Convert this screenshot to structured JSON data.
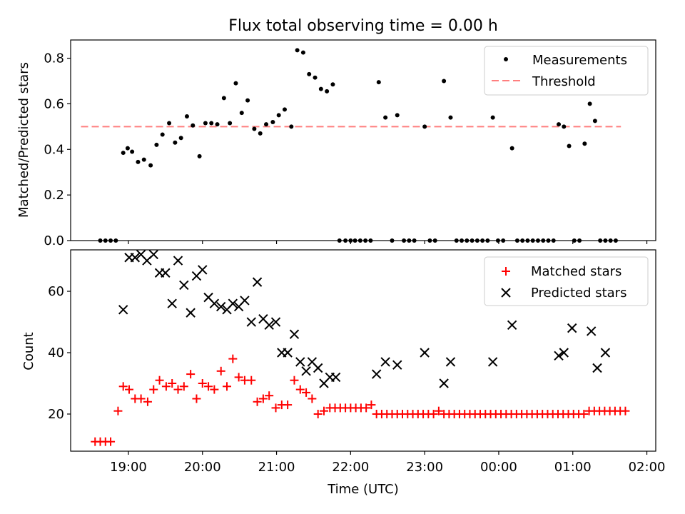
{
  "figure_title": "Flux total observing time = 0.00 h",
  "x_axis": {
    "label": "Time (UTC)",
    "ticks": [
      {
        "h": 19,
        "label": "19:00"
      },
      {
        "h": 20,
        "label": "20:00"
      },
      {
        "h": 21,
        "label": "21:00"
      },
      {
        "h": 22,
        "label": "22:00"
      },
      {
        "h": 23,
        "label": "23:00"
      },
      {
        "h": 24,
        "label": "00:00"
      },
      {
        "h": 25,
        "label": "01:00"
      },
      {
        "h": 26,
        "label": "02:00"
      }
    ],
    "range": [
      18.22,
      26.12
    ]
  },
  "chart_data": [
    {
      "type": "scatter",
      "ylabel": "Matched/Predicted stars",
      "ylim": [
        0,
        0.88
      ],
      "yticks": [
        {
          "v": 0.0,
          "label": "0.0"
        },
        {
          "v": 0.2,
          "label": "0.2"
        },
        {
          "v": 0.4,
          "label": "0.4"
        },
        {
          "v": 0.6,
          "label": "0.6"
        },
        {
          "v": 0.8,
          "label": "0.8"
        }
      ],
      "legend": {
        "position": "top-right",
        "entries": [
          "Measurements",
          "Threshold"
        ]
      },
      "series": [
        {
          "name": "Measurements",
          "color": "#000000",
          "marker": "dot",
          "points": [
            [
              18.62,
              0.0
            ],
            [
              18.69,
              0.0
            ],
            [
              18.76,
              0.0
            ],
            [
              18.83,
              0.0
            ],
            [
              18.93,
              0.385
            ],
            [
              18.99,
              0.405
            ],
            [
              19.05,
              0.39
            ],
            [
              19.13,
              0.345
            ],
            [
              19.21,
              0.355
            ],
            [
              19.3,
              0.33
            ],
            [
              19.38,
              0.42
            ],
            [
              19.46,
              0.465
            ],
            [
              19.55,
              0.515
            ],
            [
              19.63,
              0.43
            ],
            [
              19.71,
              0.45
            ],
            [
              19.79,
              0.545
            ],
            [
              19.87,
              0.505
            ],
            [
              19.96,
              0.37
            ],
            [
              20.04,
              0.515
            ],
            [
              20.12,
              0.515
            ],
            [
              20.2,
              0.51
            ],
            [
              20.29,
              0.625
            ],
            [
              20.37,
              0.515
            ],
            [
              20.45,
              0.69
            ],
            [
              20.53,
              0.56
            ],
            [
              20.61,
              0.615
            ],
            [
              20.7,
              0.49
            ],
            [
              20.78,
              0.47
            ],
            [
              20.86,
              0.51
            ],
            [
              20.95,
              0.52
            ],
            [
              21.03,
              0.55
            ],
            [
              21.11,
              0.575
            ],
            [
              21.2,
              0.5
            ],
            [
              21.28,
              0.835
            ],
            [
              21.36,
              0.825
            ],
            [
              21.44,
              0.73
            ],
            [
              21.52,
              0.715
            ],
            [
              21.6,
              0.665
            ],
            [
              21.68,
              0.655
            ],
            [
              21.76,
              0.685
            ],
            [
              21.85,
              0.0
            ],
            [
              21.93,
              0.0
            ],
            [
              22.0,
              0.0
            ],
            [
              22.06,
              0.0
            ],
            [
              22.13,
              0.0
            ],
            [
              22.2,
              0.0
            ],
            [
              22.27,
              0.0
            ],
            [
              22.38,
              0.695
            ],
            [
              22.47,
              0.54
            ],
            [
              22.56,
              0.0
            ],
            [
              22.63,
              0.55
            ],
            [
              22.72,
              0.0
            ],
            [
              22.79,
              0.0
            ],
            [
              22.86,
              0.0
            ],
            [
              23.0,
              0.5
            ],
            [
              23.07,
              0.0
            ],
            [
              23.14,
              0.0
            ],
            [
              23.26,
              0.7
            ],
            [
              23.35,
              0.54
            ],
            [
              23.43,
              0.0
            ],
            [
              23.5,
              0.0
            ],
            [
              23.57,
              0.0
            ],
            [
              23.64,
              0.0
            ],
            [
              23.71,
              0.0
            ],
            [
              23.78,
              0.0
            ],
            [
              23.85,
              0.0
            ],
            [
              23.92,
              0.54
            ],
            [
              23.99,
              0.0
            ],
            [
              24.06,
              0.0
            ],
            [
              24.18,
              0.405
            ],
            [
              24.25,
              0.0
            ],
            [
              24.32,
              0.0
            ],
            [
              24.39,
              0.0
            ],
            [
              24.46,
              0.0
            ],
            [
              24.53,
              0.0
            ],
            [
              24.6,
              0.0
            ],
            [
              24.67,
              0.0
            ],
            [
              24.74,
              0.0
            ],
            [
              24.81,
              0.51
            ],
            [
              24.88,
              0.5
            ],
            [
              24.95,
              0.415
            ],
            [
              25.02,
              0.0
            ],
            [
              25.09,
              0.0
            ],
            [
              25.16,
              0.425
            ],
            [
              25.23,
              0.6
            ],
            [
              25.3,
              0.525
            ],
            [
              25.37,
              0.0
            ],
            [
              25.44,
              0.0
            ],
            [
              25.51,
              0.0
            ],
            [
              25.58,
              0.0
            ]
          ]
        },
        {
          "name": "Threshold",
          "color": "#ff7f7f",
          "style": "dashed",
          "x": [
            18.36,
            25.65
          ],
          "y": [
            0.5,
            0.5
          ]
        }
      ]
    },
    {
      "type": "scatter",
      "xlabel": "Time (UTC)",
      "ylabel": "Count",
      "ylim": [
        7.9,
        73.5
      ],
      "yticks": [
        {
          "v": 20,
          "label": "20"
        },
        {
          "v": 40,
          "label": "40"
        },
        {
          "v": 60,
          "label": "60"
        }
      ],
      "legend": {
        "position": "top-right",
        "entries": [
          "Matched stars",
          "Predicted stars"
        ]
      },
      "series": [
        {
          "name": "Matched stars",
          "color": "#ff0000",
          "marker": "plus",
          "points": [
            [
              18.55,
              11
            ],
            [
              18.62,
              11
            ],
            [
              18.69,
              11
            ],
            [
              18.76,
              11
            ],
            [
              18.86,
              21
            ],
            [
              18.93,
              29
            ],
            [
              19.01,
              28
            ],
            [
              19.09,
              25
            ],
            [
              19.17,
              25
            ],
            [
              19.26,
              24
            ],
            [
              19.34,
              28
            ],
            [
              19.42,
              31
            ],
            [
              19.51,
              29
            ],
            [
              19.59,
              30
            ],
            [
              19.67,
              28
            ],
            [
              19.75,
              29
            ],
            [
              19.84,
              33
            ],
            [
              19.92,
              25
            ],
            [
              20.0,
              30
            ],
            [
              20.08,
              29
            ],
            [
              20.16,
              28
            ],
            [
              20.25,
              34
            ],
            [
              20.33,
              29
            ],
            [
              20.41,
              38
            ],
            [
              20.49,
              32
            ],
            [
              20.57,
              31
            ],
            [
              20.66,
              31
            ],
            [
              20.74,
              24
            ],
            [
              20.82,
              25
            ],
            [
              20.9,
              26
            ],
            [
              20.99,
              22
            ],
            [
              21.07,
              23
            ],
            [
              21.15,
              23
            ],
            [
              21.24,
              31
            ],
            [
              21.32,
              28
            ],
            [
              21.4,
              27
            ],
            [
              21.48,
              25
            ],
            [
              21.56,
              20
            ],
            [
              21.64,
              21
            ],
            [
              21.72,
              22
            ],
            [
              21.79,
              22
            ],
            [
              21.86,
              22
            ],
            [
              21.93,
              22
            ],
            [
              22.0,
              22
            ],
            [
              22.07,
              22
            ],
            [
              22.14,
              22
            ],
            [
              22.21,
              22
            ],
            [
              22.28,
              23
            ],
            [
              22.35,
              20
            ],
            [
              22.42,
              20
            ],
            [
              22.49,
              20
            ],
            [
              22.56,
              20
            ],
            [
              22.63,
              20
            ],
            [
              22.7,
              20
            ],
            [
              22.77,
              20
            ],
            [
              22.84,
              20
            ],
            [
              22.91,
              20
            ],
            [
              22.98,
              20
            ],
            [
              23.05,
              20
            ],
            [
              23.12,
              20
            ],
            [
              23.19,
              21
            ],
            [
              23.26,
              20
            ],
            [
              23.33,
              20
            ],
            [
              23.4,
              20
            ],
            [
              23.47,
              20
            ],
            [
              23.54,
              20
            ],
            [
              23.61,
              20
            ],
            [
              23.68,
              20
            ],
            [
              23.75,
              20
            ],
            [
              23.82,
              20
            ],
            [
              23.89,
              20
            ],
            [
              23.96,
              20
            ],
            [
              24.03,
              20
            ],
            [
              24.1,
              20
            ],
            [
              24.17,
              20
            ],
            [
              24.24,
              20
            ],
            [
              24.31,
              20
            ],
            [
              24.38,
              20
            ],
            [
              24.45,
              20
            ],
            [
              24.52,
              20
            ],
            [
              24.59,
              20
            ],
            [
              24.66,
              20
            ],
            [
              24.73,
              20
            ],
            [
              24.8,
              20
            ],
            [
              24.87,
              20
            ],
            [
              24.94,
              20
            ],
            [
              25.01,
              20
            ],
            [
              25.08,
              20
            ],
            [
              25.15,
              20
            ],
            [
              25.22,
              21
            ],
            [
              25.29,
              21
            ],
            [
              25.36,
              21
            ],
            [
              25.43,
              21
            ],
            [
              25.5,
              21
            ],
            [
              25.57,
              21
            ],
            [
              25.64,
              21
            ],
            [
              25.71,
              21
            ]
          ]
        },
        {
          "name": "Predicted stars",
          "color": "#000000",
          "marker": "x",
          "points": [
            [
              18.93,
              54
            ],
            [
              19.01,
              71
            ],
            [
              19.09,
              71
            ],
            [
              19.17,
              72
            ],
            [
              19.25,
              70
            ],
            [
              19.34,
              72
            ],
            [
              19.42,
              66
            ],
            [
              19.5,
              66
            ],
            [
              19.59,
              56
            ],
            [
              19.67,
              70
            ],
            [
              19.75,
              62
            ],
            [
              19.84,
              53
            ],
            [
              19.92,
              65
            ],
            [
              20.0,
              67
            ],
            [
              20.08,
              58
            ],
            [
              20.16,
              56
            ],
            [
              20.25,
              55
            ],
            [
              20.33,
              54
            ],
            [
              20.41,
              56
            ],
            [
              20.49,
              55
            ],
            [
              20.57,
              57
            ],
            [
              20.66,
              50
            ],
            [
              20.74,
              63
            ],
            [
              20.82,
              51
            ],
            [
              20.9,
              49
            ],
            [
              20.99,
              50
            ],
            [
              21.07,
              40
            ],
            [
              21.15,
              40
            ],
            [
              21.24,
              46
            ],
            [
              21.32,
              37
            ],
            [
              21.4,
              34
            ],
            [
              21.48,
              37
            ],
            [
              21.56,
              35
            ],
            [
              21.64,
              30
            ],
            [
              21.72,
              32
            ],
            [
              21.8,
              32
            ],
            [
              22.35,
              33
            ],
            [
              22.47,
              37
            ],
            [
              22.63,
              36
            ],
            [
              23.0,
              40
            ],
            [
              23.26,
              30
            ],
            [
              23.35,
              37
            ],
            [
              23.92,
              37
            ],
            [
              24.18,
              49
            ],
            [
              24.81,
              39
            ],
            [
              24.88,
              40
            ],
            [
              24.99,
              48
            ],
            [
              25.25,
              47
            ],
            [
              25.33,
              35
            ],
            [
              25.44,
              40
            ]
          ]
        }
      ]
    }
  ]
}
